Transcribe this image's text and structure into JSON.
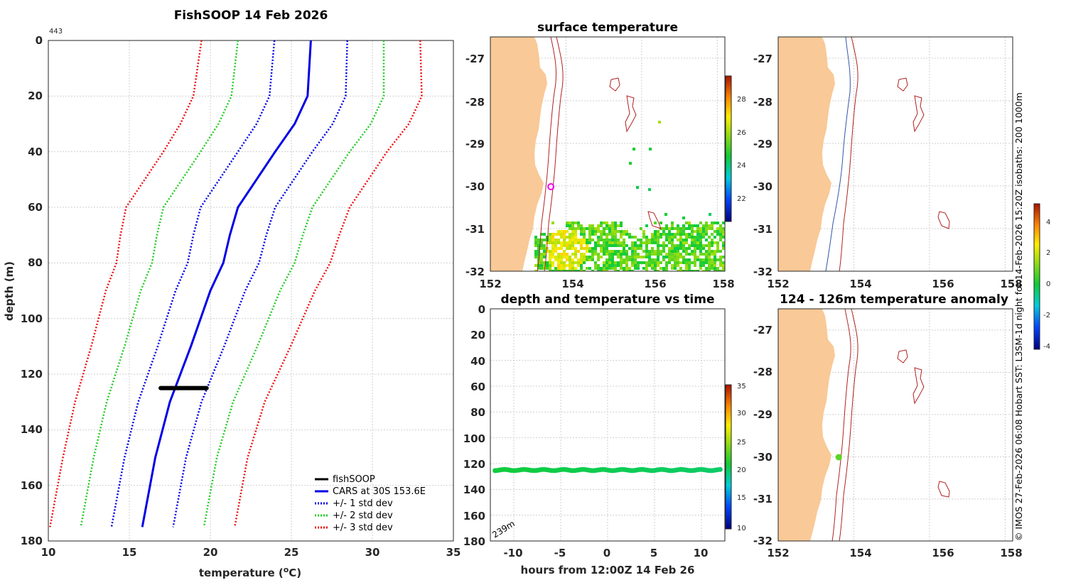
{
  "chart_data": [
    {
      "id": "profile",
      "type": "line",
      "title": "FishSOOP 14 Feb 2026",
      "annotation": "443",
      "xlabel": "temperature (oC)",
      "ylabel": "depth (m)",
      "xlim": [
        10,
        35
      ],
      "ylim": [
        0,
        180
      ],
      "xticks": [
        "10",
        "15",
        "20",
        "25",
        "30",
        "35"
      ],
      "yticks": [
        "0",
        "20",
        "40",
        "60",
        "80",
        "100",
        "120",
        "140",
        "160",
        "180"
      ],
      "depths": [
        0,
        20,
        30,
        40,
        60,
        70,
        80,
        90,
        110,
        130,
        150,
        175
      ],
      "mean": [
        26.2,
        26.0,
        25.2,
        24.0,
        21.7,
        21.2,
        20.8,
        20.0,
        18.8,
        17.5,
        16.6,
        15.8
      ],
      "std": [
        2.25,
        2.35,
        2.35,
        2.3,
        2.3,
        2.25,
        2.2,
        2.15,
        2.05,
        1.95,
        1.9,
        1.9
      ],
      "fishsoop": {
        "depth": 125,
        "tmin": 16.8,
        "tmax": 19.9
      },
      "legend": [
        {
          "label": "fishSOOP",
          "color": "#000000",
          "style": "solid"
        },
        {
          "label": "CARS at 30S 153.6E",
          "color": "#0000e6",
          "style": "solid"
        },
        {
          "label": "+/- 1 std dev",
          "color": "#0000e6",
          "style": "dotted"
        },
        {
          "label": "+/- 2 std dev",
          "color": "#22cc22",
          "style": "dotted"
        },
        {
          "label": "+/- 3 std dev",
          "color": "#ee1111",
          "style": "dotted"
        }
      ]
    },
    {
      "id": "sst_map",
      "type": "heatmap",
      "title": "surface temperature",
      "xticks": [
        "152",
        "154",
        "156",
        "158"
      ],
      "yticks": [
        "-27",
        "-28",
        "-29",
        "-30",
        "-31",
        "-32"
      ],
      "colorbar_ticks": [
        "22",
        "24",
        "26",
        "28"
      ],
      "colorbar_range": [
        20.8,
        29.2
      ],
      "marker": {
        "lon": 153.6,
        "lat": -30.0
      }
    },
    {
      "id": "bathy_map",
      "type": "heatmap",
      "xticks": [
        "152",
        "154",
        "156",
        "158"
      ],
      "yticks": [
        "-27",
        "-28",
        "-29",
        "-30",
        "-31",
        "-32"
      ]
    },
    {
      "id": "depth_time",
      "type": "scatter",
      "title": "depth and temperature vs time",
      "xlabel": "hours from 12:00Z 14 Feb 26",
      "xticks": [
        "-10",
        "-5",
        "0",
        "5",
        "10"
      ],
      "yticks": [
        "0",
        "20",
        "40",
        "60",
        "80",
        "100",
        "120",
        "140",
        "160",
        "180"
      ],
      "xlim": [
        -12.5,
        12.5
      ],
      "ylim": [
        0,
        180
      ],
      "depth": 125,
      "temp_start": 20.5,
      "temp_end": 19.5,
      "colorbar_ticks": [
        "10",
        "15",
        "20",
        "25",
        "30",
        "35"
      ],
      "colorbar_range": [
        9,
        35
      ],
      "annotation": "239m"
    },
    {
      "id": "anomaly_map",
      "type": "heatmap",
      "title": "124 - 126m temperature anomaly",
      "xticks": [
        "152",
        "154",
        "156",
        "158"
      ],
      "yticks": [
        "-27",
        "-28",
        "-29",
        "-30",
        "-31",
        "-32"
      ],
      "colorbar_ticks": [
        "4",
        "2",
        "0",
        "-2",
        "-4"
      ],
      "colorbar_range": [
        -4.8,
        4.8
      ],
      "marker": {
        "lon": 153.6,
        "lat": -30.0,
        "value": 0.3
      }
    }
  ],
  "footer_text": "© IMOS 27-Feb-2026 06:08 Hobart SST: L3SM-1d night for 14-Feb-2026 15:20Z isobaths: 200  1000m"
}
